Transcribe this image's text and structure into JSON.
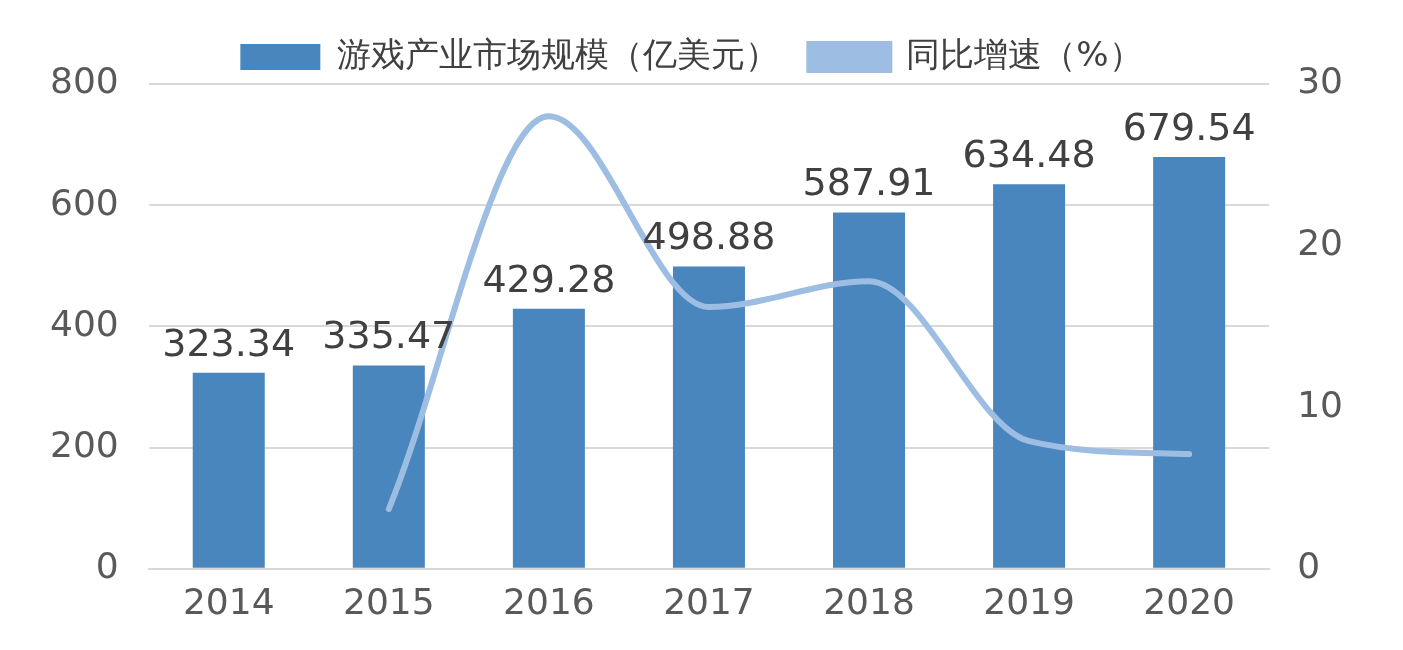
{
  "chart_data": {
    "type": "bar",
    "categories": [
      "2014",
      "2015",
      "2016",
      "2017",
      "2018",
      "2019",
      "2020"
    ],
    "series": [
      {
        "name": "游戏产业市场规模（亿美元）",
        "color": "#4a86be",
        "values": [
          323.34,
          335.47,
          429.28,
          498.88,
          587.91,
          634.48,
          679.54
        ],
        "value_labels": [
          "323.34",
          "335.47",
          "429.28",
          "498.88",
          "587.91",
          "634.48",
          "679.54"
        ]
      },
      {
        "name": "同比增速（%）",
        "type": "line",
        "axis": "y2",
        "color": "#9dbde3",
        "values": [
          null,
          3.7,
          28,
          16.2,
          17.8,
          7.9,
          7.1
        ]
      }
    ],
    "ylim": [
      0,
      800
    ],
    "yticks": [
      0,
      200,
      400,
      600,
      800
    ],
    "y2lim": [
      0,
      30
    ],
    "y2ticks": [
      0,
      10,
      20,
      30
    ],
    "grid": "y",
    "legend": "top",
    "marker": "none",
    "line_style": "solid"
  }
}
